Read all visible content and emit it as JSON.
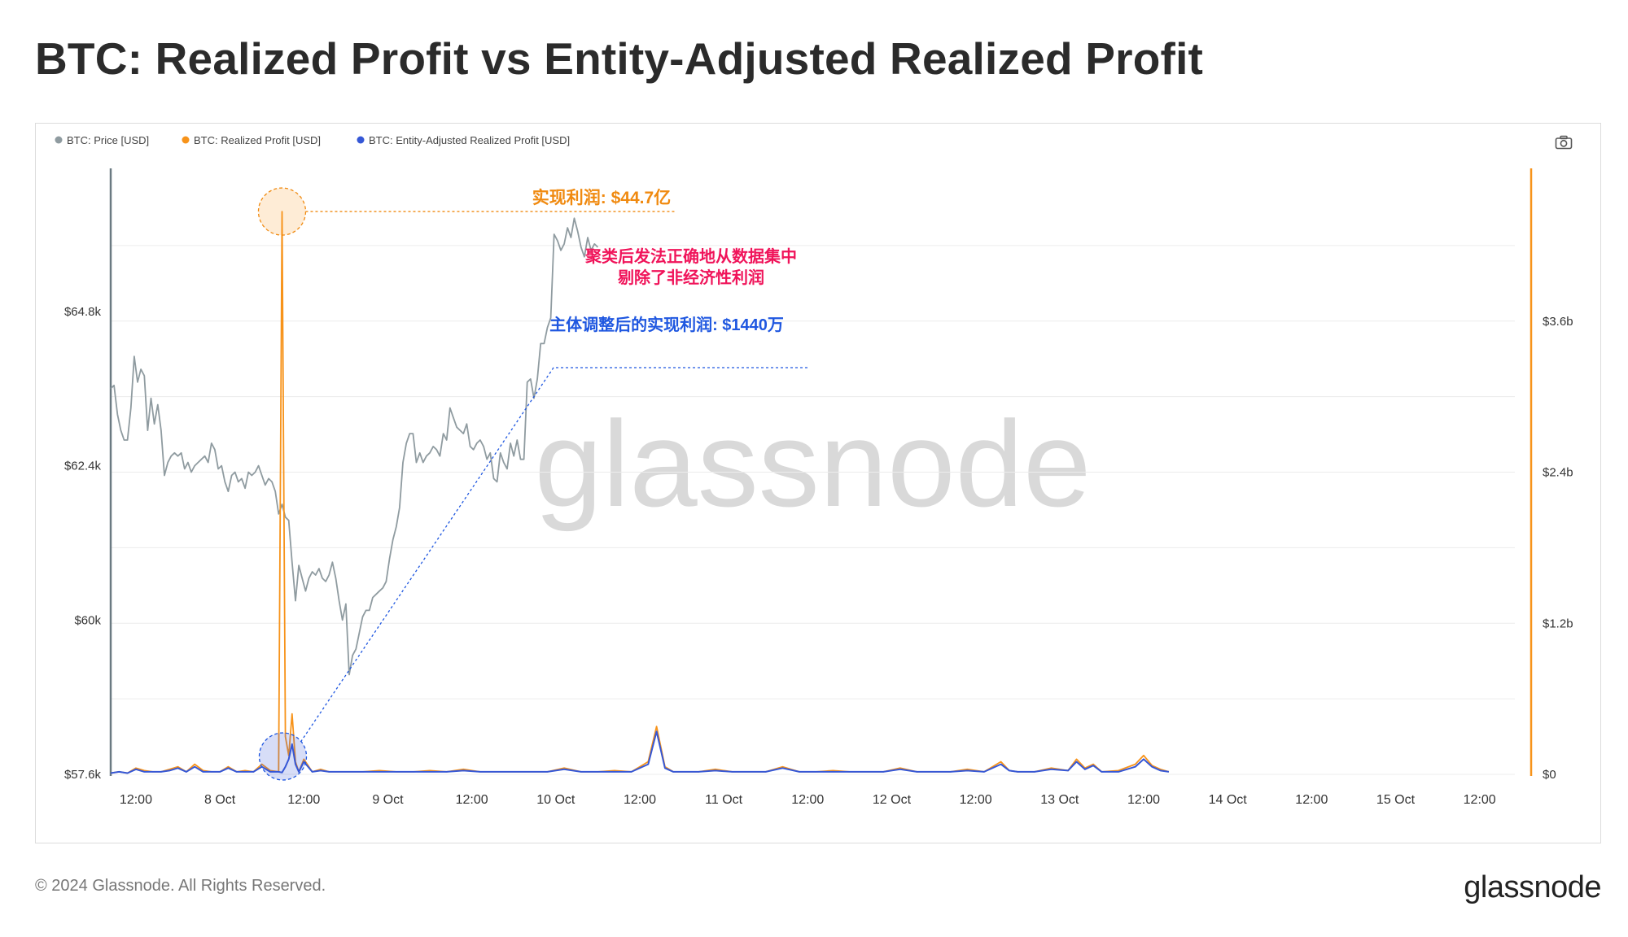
{
  "page": {
    "title": "BTC: Realized Profit vs Entity-Adjusted Realized Profit",
    "copyright": "© 2024 Glassnode. All Rights Reserved.",
    "logo": "glassnode",
    "watermark": "glassnode"
  },
  "toolbar": {
    "camera_icon": "camera-icon"
  },
  "colors": {
    "price": "#8f9ba0",
    "realized": "#f7931a",
    "entity": "#3557d6",
    "annotation_pink": "#f0145a",
    "annotation_blue": "#1f57e0",
    "annotation_orange": "#f08a10"
  },
  "chart_data": {
    "type": "line",
    "legend": [
      {
        "key": "price",
        "label": "BTC: Price [USD]"
      },
      {
        "key": "realized",
        "label": "BTC: Realized Profit [USD]"
      },
      {
        "key": "entity",
        "label": "BTC: Entity-Adjusted Realized Profit [USD]"
      }
    ],
    "legend_position": "top-left",
    "x_range_days": [
      7.6,
      15.96
    ],
    "x_ticks": [
      {
        "day": 7.75,
        "label": "12:00"
      },
      {
        "day": 8.25,
        "label": "8 Oct"
      },
      {
        "day": 8.75,
        "label": "12:00"
      },
      {
        "day": 9.25,
        "label": "9 Oct"
      },
      {
        "day": 9.75,
        "label": "12:00"
      },
      {
        "day": 10.25,
        "label": "10 Oct"
      },
      {
        "day": 10.75,
        "label": "12:00"
      },
      {
        "day": 11.25,
        "label": "11 Oct"
      },
      {
        "day": 11.75,
        "label": "12:00"
      },
      {
        "day": 12.25,
        "label": "12 Oct"
      },
      {
        "day": 12.75,
        "label": "12:00"
      },
      {
        "day": 13.25,
        "label": "13 Oct"
      },
      {
        "day": 13.75,
        "label": "12:00"
      },
      {
        "day": 14.25,
        "label": "14 Oct"
      },
      {
        "day": 14.75,
        "label": "12:00"
      },
      {
        "day": 15.25,
        "label": "15 Oct"
      },
      {
        "day": 15.75,
        "label": "12:00"
      }
    ],
    "y_left": {
      "min": 57600,
      "max": 67000,
      "ticks": [
        {
          "value": 57600,
          "label": "$57.6k"
        },
        {
          "value": 60000,
          "label": "$60k"
        },
        {
          "value": 62400,
          "label": "$62.4k"
        },
        {
          "value": 64800,
          "label": "$64.8k"
        }
      ]
    },
    "y_right": {
      "min": 0,
      "max": 4.8,
      "ticks": [
        {
          "value": 0,
          "label": "$0"
        },
        {
          "value": 1.2,
          "label": "$1.2b"
        },
        {
          "value": 2.4,
          "label": "$2.4b"
        },
        {
          "value": 3.6,
          "label": "$3.6b"
        }
      ]
    },
    "grid": true,
    "series_price": [
      [
        7.6,
        63600
      ],
      [
        7.62,
        63650
      ],
      [
        7.64,
        63200
      ],
      [
        7.66,
        62950
      ],
      [
        7.68,
        62800
      ],
      [
        7.7,
        62800
      ],
      [
        7.72,
        63300
      ],
      [
        7.74,
        64100
      ],
      [
        7.76,
        63700
      ],
      [
        7.78,
        63900
      ],
      [
        7.8,
        63800
      ],
      [
        7.82,
        62950
      ],
      [
        7.84,
        63450
      ],
      [
        7.86,
        63050
      ],
      [
        7.88,
        63350
      ],
      [
        7.9,
        62950
      ],
      [
        7.92,
        62250
      ],
      [
        7.94,
        62450
      ],
      [
        7.96,
        62550
      ],
      [
        7.98,
        62600
      ],
      [
        8.0,
        62550
      ],
      [
        8.02,
        62600
      ],
      [
        8.04,
        62350
      ],
      [
        8.06,
        62450
      ],
      [
        8.08,
        62300
      ],
      [
        8.1,
        62400
      ],
      [
        8.12,
        62450
      ],
      [
        8.14,
        62500
      ],
      [
        8.16,
        62550
      ],
      [
        8.18,
        62450
      ],
      [
        8.2,
        62750
      ],
      [
        8.22,
        62650
      ],
      [
        8.24,
        62350
      ],
      [
        8.26,
        62400
      ],
      [
        8.28,
        62150
      ],
      [
        8.3,
        62000
      ],
      [
        8.32,
        62250
      ],
      [
        8.34,
        62300
      ],
      [
        8.36,
        62150
      ],
      [
        8.38,
        62200
      ],
      [
        8.4,
        62050
      ],
      [
        8.42,
        62300
      ],
      [
        8.44,
        62250
      ],
      [
        8.46,
        62300
      ],
      [
        8.48,
        62400
      ],
      [
        8.5,
        62250
      ],
      [
        8.52,
        62100
      ],
      [
        8.54,
        62200
      ],
      [
        8.56,
        62150
      ],
      [
        8.58,
        62000
      ],
      [
        8.6,
        61650
      ],
      [
        8.62,
        61800
      ],
      [
        8.64,
        61600
      ],
      [
        8.66,
        61550
      ],
      [
        8.68,
        60900
      ],
      [
        8.7,
        60300
      ],
      [
        8.72,
        60850
      ],
      [
        8.74,
        60650
      ],
      [
        8.76,
        60450
      ],
      [
        8.78,
        60650
      ],
      [
        8.8,
        60750
      ],
      [
        8.82,
        60700
      ],
      [
        8.84,
        60800
      ],
      [
        8.86,
        60650
      ],
      [
        8.88,
        60600
      ],
      [
        8.9,
        60700
      ],
      [
        8.92,
        60900
      ],
      [
        8.94,
        60650
      ],
      [
        8.96,
        60300
      ],
      [
        8.98,
        60000
      ],
      [
        9.0,
        60250
      ],
      [
        9.02,
        59150
      ],
      [
        9.04,
        59450
      ],
      [
        9.06,
        59550
      ],
      [
        9.08,
        59800
      ],
      [
        9.1,
        60050
      ],
      [
        9.12,
        60150
      ],
      [
        9.14,
        60150
      ],
      [
        9.16,
        60350
      ],
      [
        9.18,
        60400
      ],
      [
        9.2,
        60450
      ],
      [
        9.22,
        60500
      ],
      [
        9.24,
        60600
      ],
      [
        9.26,
        60950
      ],
      [
        9.28,
        61250
      ],
      [
        9.3,
        61450
      ],
      [
        9.32,
        61750
      ],
      [
        9.34,
        62450
      ],
      [
        9.36,
        62750
      ],
      [
        9.38,
        62900
      ],
      [
        9.4,
        62900
      ],
      [
        9.42,
        62450
      ],
      [
        9.44,
        62600
      ],
      [
        9.46,
        62450
      ],
      [
        9.48,
        62550
      ],
      [
        9.5,
        62600
      ],
      [
        9.52,
        62700
      ],
      [
        9.54,
        62650
      ],
      [
        9.56,
        62550
      ],
      [
        9.58,
        62900
      ],
      [
        9.6,
        62800
      ],
      [
        9.62,
        63300
      ],
      [
        9.64,
        63150
      ],
      [
        9.66,
        63000
      ],
      [
        9.68,
        62950
      ],
      [
        9.7,
        62900
      ],
      [
        9.72,
        63050
      ],
      [
        9.74,
        62700
      ],
      [
        9.76,
        62650
      ],
      [
        9.78,
        62750
      ],
      [
        9.8,
        62800
      ],
      [
        9.82,
        62700
      ],
      [
        9.84,
        62500
      ],
      [
        9.86,
        62600
      ],
      [
        9.88,
        62200
      ],
      [
        9.9,
        62150
      ],
      [
        9.92,
        62600
      ],
      [
        9.94,
        62450
      ],
      [
        9.96,
        62350
      ],
      [
        9.98,
        62750
      ],
      [
        10.0,
        62550
      ],
      [
        10.02,
        62800
      ],
      [
        10.04,
        62500
      ],
      [
        10.06,
        62500
      ],
      [
        10.08,
        63700
      ],
      [
        10.1,
        63750
      ],
      [
        10.12,
        63450
      ],
      [
        10.14,
        63750
      ],
      [
        10.16,
        64300
      ],
      [
        10.18,
        64300
      ],
      [
        10.2,
        64550
      ],
      [
        10.22,
        64700
      ],
      [
        10.24,
        66000
      ],
      [
        10.26,
        65900
      ],
      [
        10.28,
        65750
      ],
      [
        10.3,
        65850
      ],
      [
        10.32,
        66100
      ],
      [
        10.34,
        65950
      ],
      [
        10.36,
        66250
      ],
      [
        10.38,
        66050
      ],
      [
        10.4,
        65800
      ],
      [
        10.42,
        65650
      ],
      [
        10.44,
        65950
      ],
      [
        10.46,
        65750
      ],
      [
        10.48,
        65850
      ],
      [
        10.5,
        65800
      ]
    ],
    "series_realized": [
      [
        7.6,
        0.01
      ],
      [
        7.65,
        0.02
      ],
      [
        7.7,
        0.01
      ],
      [
        7.75,
        0.05
      ],
      [
        7.8,
        0.03
      ],
      [
        7.85,
        0.02
      ],
      [
        7.9,
        0.02
      ],
      [
        7.95,
        0.04
      ],
      [
        8.0,
        0.06
      ],
      [
        8.05,
        0.02
      ],
      [
        8.1,
        0.08
      ],
      [
        8.15,
        0.03
      ],
      [
        8.2,
        0.02
      ],
      [
        8.25,
        0.02
      ],
      [
        8.3,
        0.06
      ],
      [
        8.35,
        0.02
      ],
      [
        8.4,
        0.03
      ],
      [
        8.45,
        0.02
      ],
      [
        8.5,
        0.08
      ],
      [
        8.55,
        0.03
      ],
      [
        8.6,
        0.02
      ],
      [
        8.62,
        4.47
      ],
      [
        8.64,
        0.3
      ],
      [
        8.66,
        0.15
      ],
      [
        8.68,
        0.48
      ],
      [
        8.7,
        0.1
      ],
      [
        8.72,
        0.02
      ],
      [
        8.75,
        0.12
      ],
      [
        8.8,
        0.02
      ],
      [
        8.85,
        0.04
      ],
      [
        8.9,
        0.02
      ],
      [
        8.95,
        0.02
      ],
      [
        9.0,
        0.02
      ],
      [
        9.1,
        0.02
      ],
      [
        9.2,
        0.03
      ],
      [
        9.3,
        0.02
      ],
      [
        9.4,
        0.02
      ],
      [
        9.5,
        0.03
      ],
      [
        9.6,
        0.02
      ],
      [
        9.7,
        0.04
      ],
      [
        9.8,
        0.02
      ],
      [
        9.9,
        0.02
      ],
      [
        10.0,
        0.02
      ],
      [
        10.1,
        0.02
      ],
      [
        10.2,
        0.02
      ],
      [
        10.3,
        0.05
      ],
      [
        10.4,
        0.02
      ],
      [
        10.5,
        0.02
      ],
      [
        10.6,
        0.03
      ],
      [
        10.7,
        0.02
      ],
      [
        10.8,
        0.1
      ],
      [
        10.85,
        0.38
      ],
      [
        10.9,
        0.06
      ],
      [
        10.95,
        0.02
      ],
      [
        11.0,
        0.02
      ],
      [
        11.1,
        0.02
      ],
      [
        11.2,
        0.04
      ],
      [
        11.3,
        0.02
      ],
      [
        11.4,
        0.02
      ],
      [
        11.5,
        0.02
      ],
      [
        11.6,
        0.06
      ],
      [
        11.7,
        0.02
      ],
      [
        11.8,
        0.02
      ],
      [
        11.9,
        0.03
      ],
      [
        12.0,
        0.02
      ],
      [
        12.1,
        0.02
      ],
      [
        12.2,
        0.02
      ],
      [
        12.3,
        0.05
      ],
      [
        12.4,
        0.02
      ],
      [
        12.5,
        0.02
      ],
      [
        12.6,
        0.02
      ],
      [
        12.7,
        0.04
      ],
      [
        12.8,
        0.02
      ],
      [
        12.9,
        0.1
      ],
      [
        12.95,
        0.03
      ],
      [
        13.0,
        0.02
      ],
      [
        13.1,
        0.02
      ],
      [
        13.2,
        0.05
      ],
      [
        13.3,
        0.03
      ],
      [
        13.35,
        0.12
      ],
      [
        13.4,
        0.05
      ],
      [
        13.45,
        0.08
      ],
      [
        13.5,
        0.02
      ],
      [
        13.6,
        0.03
      ],
      [
        13.7,
        0.08
      ],
      [
        13.75,
        0.15
      ],
      [
        13.8,
        0.07
      ],
      [
        13.85,
        0.04
      ],
      [
        13.9,
        0.02
      ]
    ],
    "series_entity": [
      [
        7.6,
        0.01
      ],
      [
        7.65,
        0.02
      ],
      [
        7.7,
        0.01
      ],
      [
        7.75,
        0.04
      ],
      [
        7.8,
        0.02
      ],
      [
        7.85,
        0.02
      ],
      [
        7.9,
        0.02
      ],
      [
        7.95,
        0.03
      ],
      [
        8.0,
        0.05
      ],
      [
        8.05,
        0.02
      ],
      [
        8.1,
        0.06
      ],
      [
        8.15,
        0.02
      ],
      [
        8.2,
        0.02
      ],
      [
        8.25,
        0.02
      ],
      [
        8.3,
        0.05
      ],
      [
        8.35,
        0.02
      ],
      [
        8.4,
        0.02
      ],
      [
        8.45,
        0.02
      ],
      [
        8.5,
        0.06
      ],
      [
        8.55,
        0.02
      ],
      [
        8.6,
        0.02
      ],
      [
        8.62,
        0.0144
      ],
      [
        8.64,
        0.06
      ],
      [
        8.66,
        0.12
      ],
      [
        8.68,
        0.24
      ],
      [
        8.7,
        0.08
      ],
      [
        8.72,
        0.02
      ],
      [
        8.75,
        0.1
      ],
      [
        8.8,
        0.02
      ],
      [
        8.85,
        0.03
      ],
      [
        8.9,
        0.02
      ],
      [
        8.95,
        0.02
      ],
      [
        9.0,
        0.02
      ],
      [
        9.1,
        0.02
      ],
      [
        9.2,
        0.02
      ],
      [
        9.3,
        0.02
      ],
      [
        9.4,
        0.02
      ],
      [
        9.5,
        0.02
      ],
      [
        9.6,
        0.02
      ],
      [
        9.7,
        0.03
      ],
      [
        9.8,
        0.02
      ],
      [
        9.9,
        0.02
      ],
      [
        10.0,
        0.02
      ],
      [
        10.1,
        0.02
      ],
      [
        10.2,
        0.02
      ],
      [
        10.3,
        0.04
      ],
      [
        10.4,
        0.02
      ],
      [
        10.5,
        0.02
      ],
      [
        10.6,
        0.02
      ],
      [
        10.7,
        0.02
      ],
      [
        10.8,
        0.08
      ],
      [
        10.85,
        0.34
      ],
      [
        10.9,
        0.05
      ],
      [
        10.95,
        0.02
      ],
      [
        11.0,
        0.02
      ],
      [
        11.1,
        0.02
      ],
      [
        11.2,
        0.03
      ],
      [
        11.3,
        0.02
      ],
      [
        11.4,
        0.02
      ],
      [
        11.5,
        0.02
      ],
      [
        11.6,
        0.05
      ],
      [
        11.7,
        0.02
      ],
      [
        11.8,
        0.02
      ],
      [
        11.9,
        0.02
      ],
      [
        12.0,
        0.02
      ],
      [
        12.1,
        0.02
      ],
      [
        12.2,
        0.02
      ],
      [
        12.3,
        0.04
      ],
      [
        12.4,
        0.02
      ],
      [
        12.5,
        0.02
      ],
      [
        12.6,
        0.02
      ],
      [
        12.7,
        0.03
      ],
      [
        12.8,
        0.02
      ],
      [
        12.9,
        0.08
      ],
      [
        12.95,
        0.03
      ],
      [
        13.0,
        0.02
      ],
      [
        13.1,
        0.02
      ],
      [
        13.2,
        0.04
      ],
      [
        13.3,
        0.03
      ],
      [
        13.35,
        0.1
      ],
      [
        13.4,
        0.04
      ],
      [
        13.45,
        0.07
      ],
      [
        13.5,
        0.02
      ],
      [
        13.6,
        0.02
      ],
      [
        13.7,
        0.06
      ],
      [
        13.75,
        0.12
      ],
      [
        13.8,
        0.06
      ],
      [
        13.85,
        0.03
      ],
      [
        13.9,
        0.02
      ]
    ],
    "annotations": {
      "realized_peak": "实现利润: $44.7亿",
      "cluster_note_line1": "聚类后发法正确地从数据集中",
      "cluster_note_line2": "剔除了非经济性利润",
      "entity_value": "主体调整后的实现利润: $1440万"
    }
  }
}
